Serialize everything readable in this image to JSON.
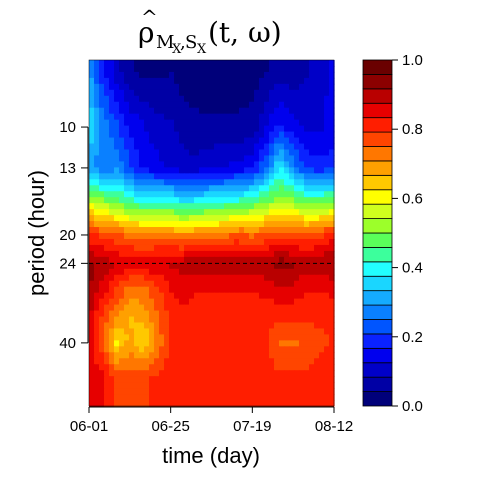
{
  "chart_data": {
    "type": "heatmap",
    "title": {
      "base": "ρ",
      "hat": "^",
      "subscript_main": "M",
      "subscript_1": "X",
      "comma": ",",
      "subscript_main_2": "S",
      "subscript_2": "X",
      "args": "(t, ω)"
    },
    "xlabel": "time (day)",
    "ylabel": "period (hour)",
    "x_ticks": [
      "06-01",
      "06-25",
      "07-19",
      "08-12"
    ],
    "y_ticks": [
      {
        "label": "10",
        "value": 10
      },
      {
        "label": "13",
        "value": 13
      },
      {
        "label": "20",
        "value": 20
      },
      {
        "label": "24",
        "value": 24
      },
      {
        "label": "40",
        "value": 40
      }
    ],
    "y_scale": "log",
    "y_range": [
      6.5,
      60
    ],
    "reference_line": {
      "period": 24,
      "style": "dashed"
    },
    "colorbar": {
      "ticks": [
        "0.0",
        "0.2",
        "0.4",
        "0.6",
        "0.8",
        "1.0"
      ],
      "range": [
        0,
        1
      ],
      "levels": 20,
      "colors": [
        "#00007a",
        "#0000a5",
        "#0000c8",
        "#0000ee",
        "#0a22ff",
        "#0055ff",
        "#0a80ff",
        "#15abff",
        "#1ad6ff",
        "#22ffff",
        "#3cff9c",
        "#5aff5a",
        "#9cff2a",
        "#cfff1e",
        "#ffff00",
        "#ffc800",
        "#ffa000",
        "#ff7700",
        "#ff4500",
        "#ff1e00",
        "#e60000",
        "#b90000",
        "#8c0000",
        "#6a0000"
      ]
    },
    "data": {
      "x_days": [
        0,
        4,
        8,
        12,
        16,
        20,
        24,
        28,
        32,
        36,
        40,
        44,
        48,
        52,
        56,
        60,
        64,
        68,
        72
      ],
      "x_ref_days": {
        "06-01": 0,
        "06-25": 24,
        "07-19": 48,
        "08-12": 72
      },
      "periods": [
        7,
        10,
        13,
        16,
        20,
        24,
        28,
        34,
        40,
        50
      ],
      "values": [
        [
          0.3,
          0.18,
          0.1,
          0.05,
          0.03,
          0.03,
          0.04,
          0.02,
          0.02,
          0.02,
          0.02,
          0.02,
          0.02,
          0.04,
          0.06,
          0.05,
          0.08,
          0.1,
          0.15
        ],
        [
          0.38,
          0.28,
          0.22,
          0.16,
          0.13,
          0.1,
          0.09,
          0.06,
          0.05,
          0.05,
          0.05,
          0.05,
          0.06,
          0.12,
          0.18,
          0.14,
          0.12,
          0.12,
          0.14
        ],
        [
          0.3,
          0.26,
          0.28,
          0.22,
          0.15,
          0.14,
          0.12,
          0.1,
          0.1,
          0.12,
          0.13,
          0.14,
          0.16,
          0.25,
          0.38,
          0.28,
          0.2,
          0.18,
          0.2
        ],
        [
          0.55,
          0.5,
          0.48,
          0.42,
          0.4,
          0.4,
          0.4,
          0.36,
          0.38,
          0.4,
          0.4,
          0.42,
          0.44,
          0.48,
          0.52,
          0.5,
          0.46,
          0.46,
          0.48
        ],
        [
          0.8,
          0.78,
          0.76,
          0.74,
          0.72,
          0.72,
          0.72,
          0.7,
          0.72,
          0.72,
          0.74,
          0.76,
          0.74,
          0.76,
          0.78,
          0.78,
          0.76,
          0.78,
          0.82
        ],
        [
          0.94,
          0.9,
          0.88,
          0.86,
          0.87,
          0.88,
          0.88,
          0.9,
          0.9,
          0.9,
          0.9,
          0.9,
          0.9,
          0.91,
          0.94,
          0.92,
          0.9,
          0.91,
          0.92
        ],
        [
          0.92,
          0.86,
          0.8,
          0.74,
          0.74,
          0.78,
          0.84,
          0.86,
          0.84,
          0.84,
          0.84,
          0.84,
          0.84,
          0.85,
          0.88,
          0.87,
          0.84,
          0.84,
          0.85
        ],
        [
          0.88,
          0.78,
          0.7,
          0.66,
          0.68,
          0.74,
          0.8,
          0.82,
          0.8,
          0.8,
          0.8,
          0.8,
          0.8,
          0.8,
          0.8,
          0.8,
          0.8,
          0.8,
          0.8
        ],
        [
          0.86,
          0.76,
          0.62,
          0.68,
          0.62,
          0.72,
          0.8,
          0.8,
          0.8,
          0.8,
          0.8,
          0.8,
          0.8,
          0.8,
          0.75,
          0.74,
          0.76,
          0.78,
          0.8
        ],
        [
          0.88,
          0.84,
          0.78,
          0.78,
          0.78,
          0.8,
          0.82,
          0.82,
          0.82,
          0.82,
          0.82,
          0.82,
          0.82,
          0.82,
          0.8,
          0.8,
          0.8,
          0.81,
          0.82
        ]
      ]
    }
  }
}
